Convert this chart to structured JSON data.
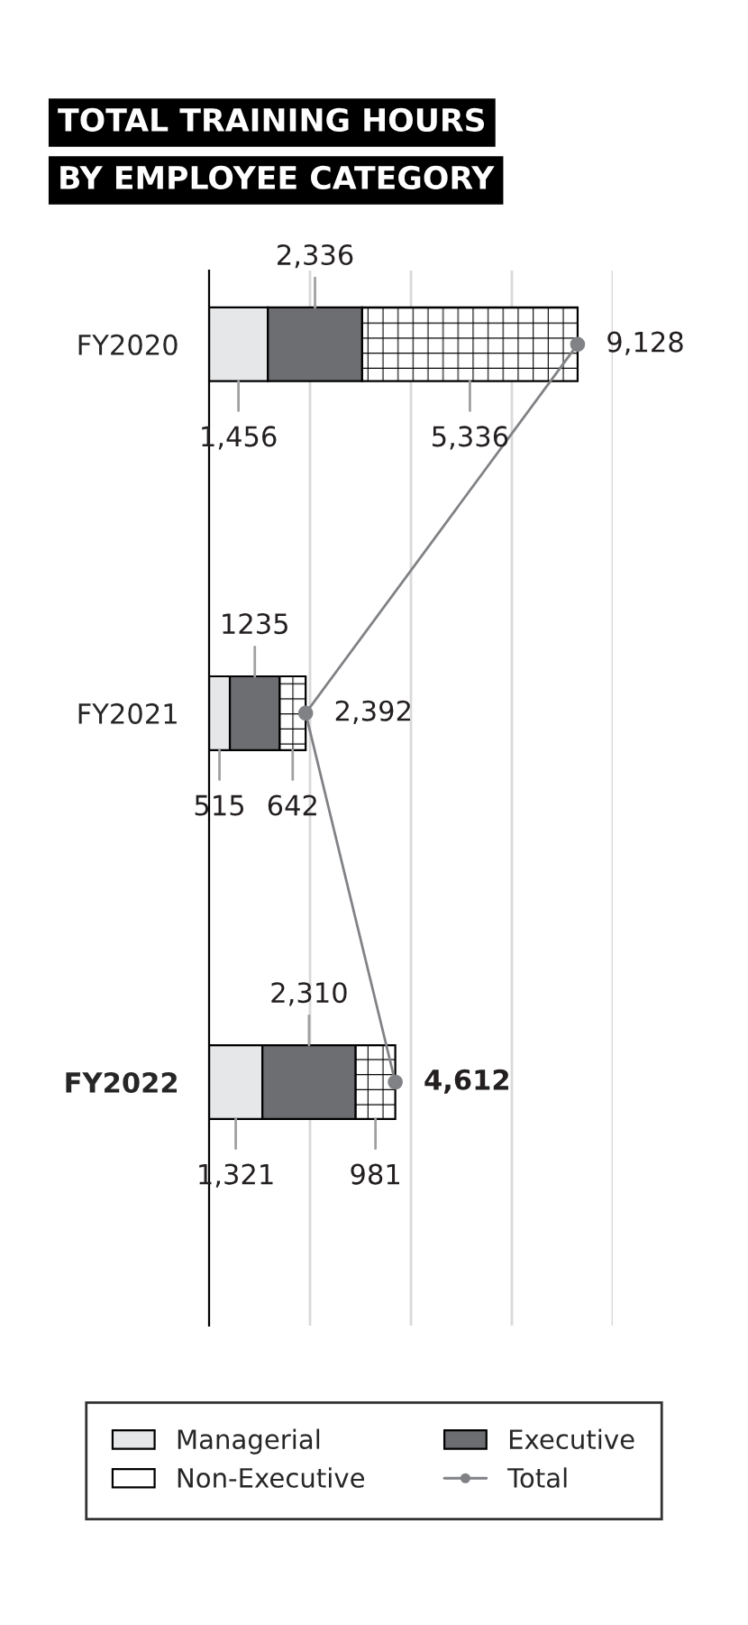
{
  "chart_data": {
    "type": "bar",
    "orientation": "horizontal",
    "stacked": true,
    "title": "TOTAL TRAINING HOURS\nBY EMPLOYEE CATEGORY",
    "categories": [
      "FY2020",
      "FY2021",
      "FY2022"
    ],
    "series": [
      {
        "name": "Managerial",
        "color": "#e6e7e8",
        "values": [
          1456,
          515,
          1321
        ],
        "value_labels": [
          "1,456",
          "515",
          "1,321"
        ]
      },
      {
        "name": "Executive",
        "color": "#6d6e71",
        "values": [
          2336,
          1235,
          2310
        ],
        "value_labels": [
          "2,336",
          "1235",
          "2,310"
        ]
      },
      {
        "name": "Non-Executive",
        "color": "#ffffff",
        "values": [
          5336,
          642,
          981
        ],
        "value_labels": [
          "5,336",
          "642",
          "981"
        ]
      },
      {
        "name": "Total",
        "type": "line",
        "color": "#808285",
        "marker": "circle",
        "values": [
          9128,
          2392,
          4612
        ],
        "value_labels": [
          "9,128",
          "2,392",
          "4,612"
        ]
      }
    ],
    "xticks": [
      {
        "value": 2500,
        "label": null
      },
      {
        "value": 5000,
        "label": null
      },
      {
        "value": 7500,
        "label": null
      },
      {
        "value": 10000,
        "label": null
      }
    ],
    "grid": "x",
    "tick_labels": "y",
    "legend": "bottom"
  }
}
